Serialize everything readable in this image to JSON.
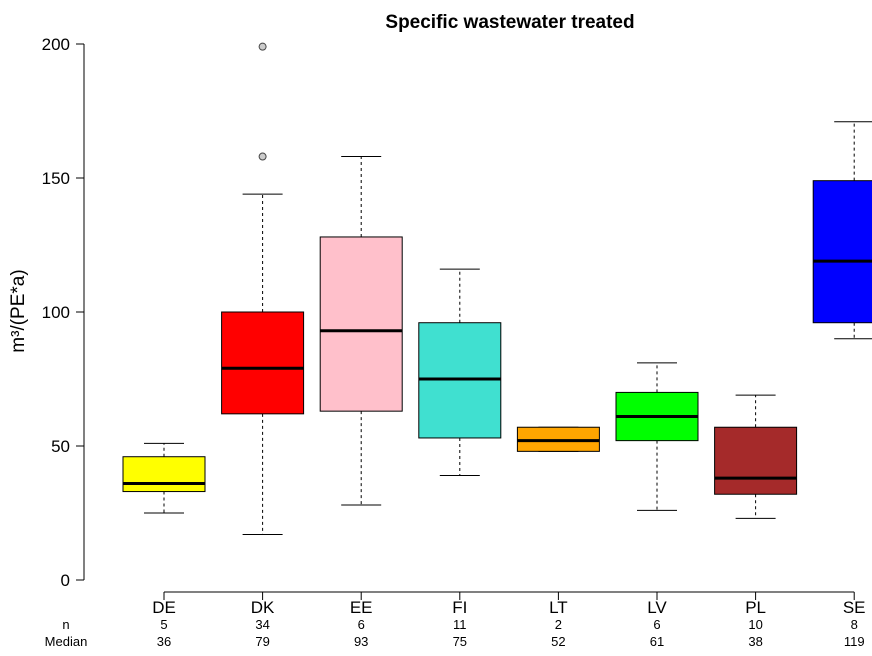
{
  "chart_data": {
    "type": "box",
    "title": "Specific wastewater treated",
    "ylabel": "m³/(PE*a)",
    "xlabel": "",
    "ylim": [
      0,
      200
    ],
    "yticks": [
      0,
      50,
      100,
      150,
      200
    ],
    "row_labels": {
      "n": "n",
      "median": "Median"
    },
    "categories": [
      "DE",
      "DK",
      "EE",
      "FI",
      "LT",
      "LV",
      "PL",
      "SE"
    ],
    "n": [
      "5",
      "34",
      "6",
      "11",
      "2",
      "6",
      "10",
      "8"
    ],
    "median_labels": [
      "36",
      "79",
      "93",
      "75",
      "52",
      "61",
      "38",
      "119"
    ],
    "boxes": [
      {
        "label": "DE",
        "whisker_low": 25,
        "q1": 33,
        "median": 36,
        "q3": 46,
        "whisker_high": 51,
        "outliers": [],
        "color": "#ffff00"
      },
      {
        "label": "DK",
        "whisker_low": 17,
        "q1": 62,
        "median": 79,
        "q3": 100,
        "whisker_high": 144,
        "outliers": [
          158,
          199
        ],
        "color": "#ff0000"
      },
      {
        "label": "EE",
        "whisker_low": 28,
        "q1": 63,
        "median": 93,
        "q3": 128,
        "whisker_high": 158,
        "outliers": [],
        "color": "#ffc0cb"
      },
      {
        "label": "FI",
        "whisker_low": 39,
        "q1": 53,
        "median": 75,
        "q3": 96,
        "whisker_high": 116,
        "outliers": [],
        "color": "#40e0d0"
      },
      {
        "label": "LT",
        "whisker_low": 48,
        "q1": 48,
        "median": 52,
        "q3": 57,
        "whisker_high": 57,
        "outliers": [],
        "color": "#ffa500"
      },
      {
        "label": "LV",
        "whisker_low": 26,
        "q1": 52,
        "median": 61,
        "q3": 70,
        "whisker_high": 81,
        "outliers": [],
        "color": "#00ff00"
      },
      {
        "label": "PL",
        "whisker_low": 23,
        "q1": 32,
        "median": 38,
        "q3": 57,
        "whisker_high": 69,
        "outliers": [],
        "color": "#a52a2a"
      },
      {
        "label": "SE",
        "whisker_low": 90,
        "q1": 96,
        "median": 119,
        "q3": 149,
        "whisker_high": 171,
        "outliers": [],
        "color": "#0000ff"
      }
    ]
  }
}
